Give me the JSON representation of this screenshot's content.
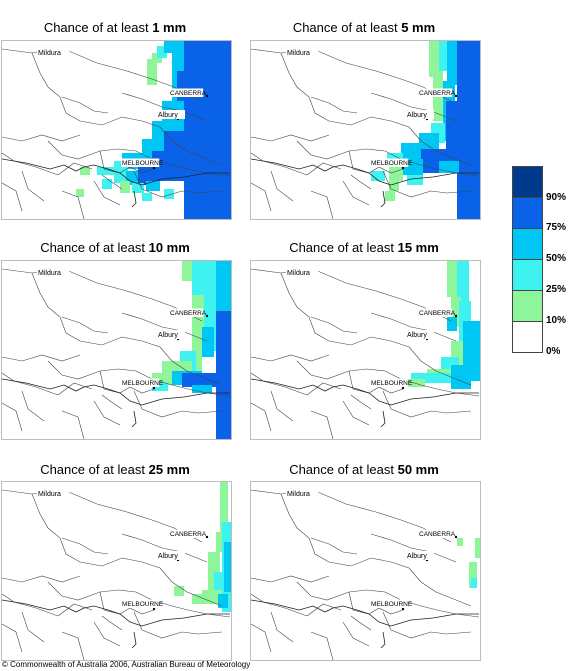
{
  "panels": [
    {
      "prefix": "Chance of at least ",
      "amount": "1 mm"
    },
    {
      "prefix": "Chance of at least ",
      "amount": "5 mm"
    },
    {
      "prefix": "Chance of at least ",
      "amount": "10 mm"
    },
    {
      "prefix": "Chance of at least ",
      "amount": "15 mm"
    },
    {
      "prefix": "Chance of at least ",
      "amount": "25 mm"
    },
    {
      "prefix": "Chance of at least ",
      "amount": "50 mm"
    }
  ],
  "places": {
    "mildura": "Mildura",
    "canberra": "CANBERRA",
    "albury": "Albury",
    "melbourne": "MELBOURNE"
  },
  "legend": {
    "labels": [
      "90%",
      "75%",
      "50%",
      "25%",
      "10%",
      "0%"
    ],
    "colors": [
      "#003a8c",
      "#0a62e8",
      "#00c6f4",
      "#3ff2f2",
      "#8ef59a",
      "#ffffff"
    ]
  },
  "copyright": "© Commonwealth of Australia 2006, Australian Bureau of Meteorology"
}
